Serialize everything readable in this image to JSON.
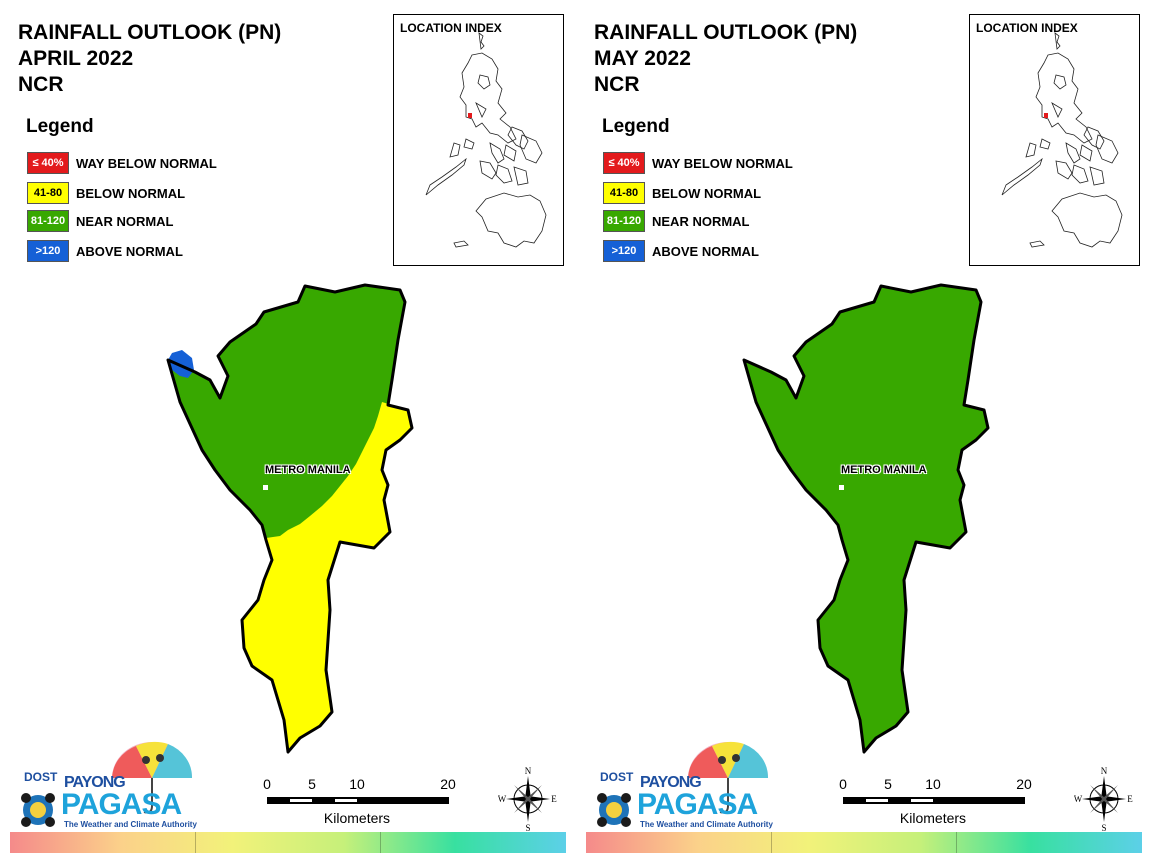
{
  "panels": [
    {
      "title_line1": "RAINFALL OUTLOOK (PN)",
      "title_line2": "APRIL 2022",
      "title_line3": "NCR",
      "zones": [
        "near_normal",
        "below_normal",
        "above_normal"
      ]
    },
    {
      "title_line1": "RAINFALL OUTLOOK (PN)",
      "title_line2": "MAY 2022",
      "title_line3": "NCR",
      "zones": [
        "near_normal"
      ]
    }
  ],
  "legend": {
    "title": "Legend",
    "items": [
      {
        "range": "≤ 40%",
        "label": "WAY BELOW NORMAL",
        "color": "#e31a1c",
        "text_color": "#ffffff"
      },
      {
        "range": "41-80",
        "label": "BELOW NORMAL",
        "color": "#ffff00",
        "text_color": "#000000"
      },
      {
        "range": "81-120",
        "label": "NEAR NORMAL",
        "color": "#38a800",
        "text_color": "#ffffff"
      },
      {
        "range": ">120",
        "label": "ABOVE NORMAL",
        "color": "#1560d6",
        "text_color": "#ffffff"
      }
    ]
  },
  "inset": {
    "title": "LOCATION INDEX"
  },
  "map_label": "METRO MANILA",
  "scale_bar": {
    "ticks": [
      "0",
      "5",
      "10",
      "20"
    ],
    "unit": "Kilometers"
  },
  "compass": {
    "n": "N",
    "s": "S",
    "e": "E",
    "w": "W"
  },
  "logo": {
    "top": "DOST",
    "brand_small": "PAYONG",
    "brand_big": "PAGASA",
    "tagline": "The Weather and Climate Authority"
  },
  "colors": {
    "near_normal": "#38a800",
    "below_normal": "#ffff00",
    "above_normal": "#1560d6",
    "way_below_normal": "#e31a1c"
  }
}
